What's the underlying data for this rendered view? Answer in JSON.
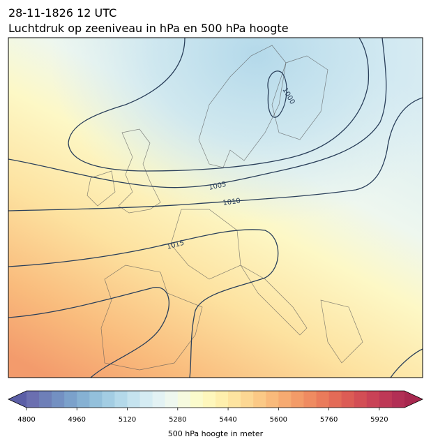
{
  "header": {
    "title": "28-11-1826 12 UTC",
    "subtitle": "Luchtdruk op zeeniveau in hPa en 500 hPa hoogte"
  },
  "map": {
    "contour_labels": [
      "1000",
      "1005",
      "1010",
      "1015"
    ]
  },
  "colorbar": {
    "label": "500 hPa hoogte in meter",
    "lim": [
      4800,
      6000
    ],
    "ticks": [
      4800,
      4960,
      5120,
      5280,
      5440,
      5600,
      5760,
      5920
    ],
    "colors": [
      "#6b6fb0",
      "#6e7fb8",
      "#7390c2",
      "#7ba1cb",
      "#86b1d3",
      "#93c0db",
      "#a3cde3",
      "#b4d9ea",
      "#c5e3ef",
      "#d5ecf3",
      "#e3f2f4",
      "#eef7ef",
      "#f6fadf",
      "#fbfbcc",
      "#fef7bc",
      "#feefad",
      "#fde4a0",
      "#fcd793",
      "#fbc986",
      "#f9ba7b",
      "#f6aa71",
      "#f39b68",
      "#ef8b61",
      "#ea7b5b",
      "#e36b57",
      "#dc5c55",
      "#d34e55",
      "#c94256",
      "#be3856",
      "#b22f55"
    ],
    "under_color": "#5b5ea6",
    "over_color": "#a8284f"
  }
}
